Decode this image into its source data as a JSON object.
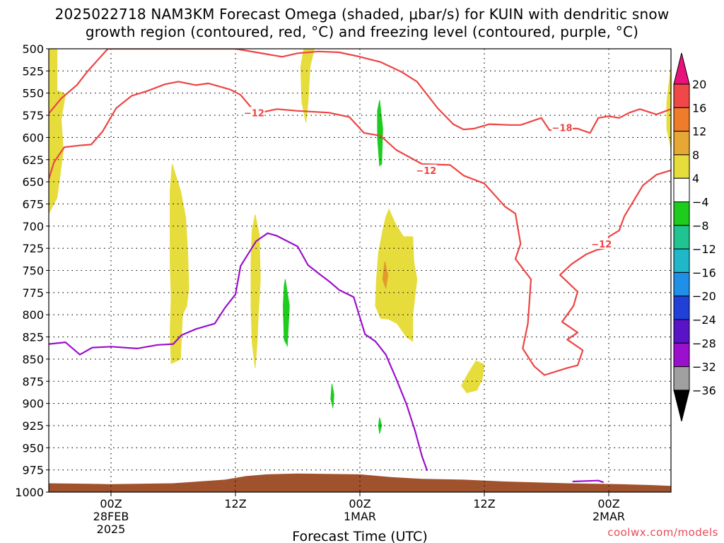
{
  "title_line1": "2025022718 NAM3KM Forecast Omega (shaded, μbar/s) for KUIN with dendritic snow",
  "title_line2": "growth region (contoured, red, °C) and freezing level (contoured, purple, °C)",
  "credit": "coolwx.com/models",
  "colors": {
    "dgz": "#ee4444",
    "freezing": "#9a10cc",
    "terrain": "#a0522d",
    "upward_green": "#1ecc1e",
    "downward_yellow": "#e6dc3c",
    "downward_orange": "#e39a2a"
  },
  "chart_data": {
    "type": "time-pressure cross-section",
    "xlabel": "Forecast Time (UTC)",
    "ylabel": "",
    "x_unit": "hours after 2025-02-27 18Z",
    "xlim": [
      0,
      60
    ],
    "ylim": [
      500,
      1000
    ],
    "y_inverted": true,
    "grid": true,
    "yticks": [
      "500",
      "525",
      "550",
      "575",
      "600",
      "625",
      "650",
      "675",
      "700",
      "725",
      "750",
      "775",
      "800",
      "825",
      "850",
      "875",
      "900",
      "925",
      "950",
      "975",
      "1000"
    ],
    "xticks": [
      {
        "t": 6,
        "lines": [
          "00Z",
          "28FEB",
          "2025"
        ]
      },
      {
        "t": 18,
        "lines": [
          "12Z"
        ]
      },
      {
        "t": 30,
        "lines": [
          "00Z",
          "1MAR"
        ]
      },
      {
        "t": 42,
        "lines": [
          "12Z"
        ]
      },
      {
        "t": 54,
        "lines": [
          "00Z",
          "2MAR"
        ]
      }
    ],
    "colorbar": {
      "labels": [
        "20",
        "16",
        "12",
        "8",
        "4",
        "-4",
        "-8",
        "-12",
        "-16",
        "-20",
        "-24",
        "-28",
        "-32",
        "-36"
      ],
      "colors": [
        "#e8127a",
        "#f04848",
        "#ee7c2a",
        "#e6a834",
        "#e6dc3c",
        "#ffffff",
        "#1ecc1e",
        "#20c490",
        "#20b8c8",
        "#1e90e8",
        "#2040d8",
        "#5a14c8",
        "#9a10cc",
        "#a0a0a0",
        "#000000"
      ]
    },
    "contours": [
      {
        "name": "-12",
        "kind": "dgz",
        "label": {
          "t": 19.8,
          "p": 572
        },
        "points": [
          [
            0,
            647
          ],
          [
            0.5,
            628
          ],
          [
            1.5,
            611
          ],
          [
            3,
            609
          ],
          [
            4.1,
            608
          ],
          [
            5.2,
            593
          ],
          [
            6.5,
            567
          ],
          [
            8,
            553
          ],
          [
            9.4,
            548
          ],
          [
            11.2,
            540
          ],
          [
            12.5,
            537
          ],
          [
            14.2,
            541
          ],
          [
            15.4,
            539
          ],
          [
            17.5,
            546
          ],
          [
            18.5,
            552
          ],
          [
            20,
            573
          ],
          [
            22,
            568
          ],
          [
            24,
            570
          ],
          [
            27,
            572
          ],
          [
            29,
            577
          ],
          [
            30.4,
            595
          ],
          [
            32,
            598
          ],
          [
            33.5,
            614
          ],
          [
            36,
            630
          ],
          [
            38.7,
            631
          ],
          [
            40,
            643
          ],
          [
            42,
            652
          ],
          [
            44,
            678
          ],
          [
            45,
            686
          ],
          [
            45.5,
            720
          ],
          [
            45,
            737
          ],
          [
            46.5,
            760
          ],
          [
            46.2,
            810
          ],
          [
            45.7,
            838
          ],
          [
            46.8,
            858
          ],
          [
            47.8,
            868
          ],
          [
            50,
            860
          ],
          [
            51,
            857
          ],
          [
            51.5,
            840
          ],
          [
            50,
            828
          ],
          [
            51,
            820
          ],
          [
            49.5,
            808
          ],
          [
            50.6,
            790
          ],
          [
            51,
            774
          ],
          [
            49.3,
            755
          ],
          [
            50.4,
            743
          ],
          [
            51.8,
            732
          ],
          [
            52.8,
            727
          ],
          [
            54,
            724
          ],
          [
            54,
            712
          ],
          [
            55,
            705
          ],
          [
            55.5,
            689
          ],
          [
            57.3,
            654
          ],
          [
            58.6,
            642
          ],
          [
            60,
            637
          ]
        ]
      },
      {
        "name": "-12",
        "kind": "dgz",
        "label": {
          "t": 53.3,
          "p": 720
        },
        "points": []
      },
      {
        "name": "-12",
        "kind": "dgz",
        "label": {
          "t": 36.4,
          "p": 637
        },
        "points": []
      },
      {
        "name": "-18",
        "kind": "dgz",
        "label": {
          "t": 49.5,
          "p": 589
        },
        "points": [
          [
            0,
            573
          ],
          [
            1.2,
            556
          ],
          [
            2.7,
            541
          ],
          [
            3.7,
            526
          ],
          [
            5,
            509
          ],
          [
            5.7,
            500
          ],
          [
            18,
            500
          ],
          [
            20,
            504
          ],
          [
            22.5,
            509
          ],
          [
            24,
            505
          ],
          [
            26,
            503
          ],
          [
            28,
            504
          ],
          [
            30,
            509
          ],
          [
            32,
            515
          ],
          [
            34,
            526
          ],
          [
            35.5,
            537
          ],
          [
            37.5,
            567
          ],
          [
            39,
            585
          ],
          [
            40,
            591
          ],
          [
            41,
            590
          ],
          [
            42.5,
            585
          ],
          [
            44.5,
            586
          ],
          [
            45.5,
            586
          ],
          [
            46.5,
            582
          ],
          [
            47.5,
            578
          ],
          [
            48.3,
            592
          ],
          [
            49.2,
            590
          ],
          [
            51,
            590
          ],
          [
            52.2,
            595
          ],
          [
            53,
            578
          ],
          [
            54,
            576
          ],
          [
            55,
            578
          ],
          [
            56,
            572
          ],
          [
            57,
            568
          ],
          [
            58.6,
            574
          ],
          [
            60,
            568
          ]
        ]
      },
      {
        "name": "freezing",
        "kind": "freezing",
        "label": null,
        "points": [
          [
            0,
            833
          ],
          [
            1.6,
            831
          ],
          [
            3,
            845
          ],
          [
            4.2,
            837
          ],
          [
            6,
            836
          ],
          [
            8.5,
            838
          ],
          [
            10.5,
            834
          ],
          [
            12,
            833
          ],
          [
            12.8,
            823
          ],
          [
            14.2,
            816
          ],
          [
            16,
            810
          ],
          [
            17,
            792
          ],
          [
            18,
            777
          ],
          [
            18.5,
            745
          ],
          [
            20,
            717
          ],
          [
            21.1,
            708
          ],
          [
            22,
            711
          ],
          [
            24,
            723
          ],
          [
            25,
            744
          ],
          [
            26.2,
            755
          ],
          [
            27,
            762
          ],
          [
            28,
            772
          ],
          [
            29.4,
            780
          ],
          [
            30.5,
            822
          ],
          [
            31.5,
            830
          ],
          [
            32.5,
            845
          ],
          [
            33.5,
            872
          ],
          [
            34.5,
            901
          ],
          [
            35.3,
            930
          ],
          [
            36,
            960
          ],
          [
            36.5,
            976
          ]
        ]
      },
      {
        "name": "freezing",
        "kind": "freezing",
        "label": null,
        "points": [
          [
            50.5,
            988
          ],
          [
            53,
            987
          ],
          [
            53.5,
            989
          ]
        ]
      }
    ],
    "shaded": [
      {
        "value": 4,
        "color": "#e6dc3c",
        "points": [
          [
            0,
            500
          ],
          [
            0.8,
            500
          ],
          [
            0.8,
            547
          ],
          [
            1.6,
            551
          ],
          [
            1.2,
            580
          ],
          [
            1.4,
            615
          ],
          [
            1,
            650
          ],
          [
            0.8,
            668
          ],
          [
            0,
            686
          ]
        ]
      },
      {
        "value": 4,
        "color": "#e6dc3c",
        "points": [
          [
            24.6,
            500
          ],
          [
            25.6,
            500
          ],
          [
            25.2,
            520
          ],
          [
            25,
            560
          ],
          [
            24.8,
            583
          ],
          [
            24.4,
            560
          ],
          [
            24.3,
            520
          ]
        ]
      },
      {
        "value": 4,
        "color": "#e6dc3c",
        "points": [
          [
            59.6,
            560
          ],
          [
            60,
            520
          ],
          [
            60,
            612
          ],
          [
            59.6,
            590
          ]
        ]
      },
      {
        "value": 4,
        "color": "#e6dc3c",
        "points": [
          [
            11.9,
            630
          ],
          [
            12.7,
            660
          ],
          [
            13.2,
            690
          ],
          [
            13.4,
            730
          ],
          [
            13.5,
            770
          ],
          [
            13.3,
            790
          ],
          [
            12.9,
            800
          ],
          [
            12.8,
            823
          ],
          [
            12.7,
            850
          ],
          [
            11.8,
            855
          ],
          [
            11.7,
            820
          ],
          [
            11.8,
            780
          ],
          [
            11.7,
            740
          ],
          [
            11.7,
            700
          ],
          [
            11.7,
            660
          ]
        ]
      },
      {
        "value": 4,
        "color": "#e6dc3c",
        "points": [
          [
            19.9,
            687
          ],
          [
            20.3,
            710
          ],
          [
            20.4,
            760
          ],
          [
            20.2,
            800
          ],
          [
            20.1,
            830
          ],
          [
            19.9,
            860
          ],
          [
            19.6,
            830
          ],
          [
            19.5,
            790
          ],
          [
            19.5,
            740
          ],
          [
            19.6,
            705
          ]
        ]
      },
      {
        "value": 4,
        "color": "#e6dc3c",
        "points": [
          [
            32.8,
            681
          ],
          [
            33.4,
            697
          ],
          [
            34.2,
            712
          ],
          [
            35.1,
            712
          ],
          [
            35.2,
            740
          ],
          [
            35.5,
            760
          ],
          [
            35.1,
            800
          ],
          [
            35.1,
            830
          ],
          [
            34.5,
            825
          ],
          [
            33.6,
            810
          ],
          [
            32.8,
            805
          ],
          [
            32,
            804
          ],
          [
            31.5,
            790
          ],
          [
            31.6,
            760
          ],
          [
            31.8,
            730
          ],
          [
            32.2,
            705
          ],
          [
            32.5,
            690
          ]
        ]
      },
      {
        "value": 4,
        "color": "#e6dc3c",
        "points": [
          [
            41.2,
            852
          ],
          [
            42,
            856
          ],
          [
            41.8,
            872
          ],
          [
            41.3,
            885
          ],
          [
            40.3,
            888
          ],
          [
            39.8,
            880
          ],
          [
            40.5,
            865
          ]
        ]
      },
      {
        "value": 8,
        "color": "#e39a2a",
        "points": [
          [
            32.4,
            740
          ],
          [
            32.7,
            755
          ],
          [
            32.5,
            770
          ],
          [
            32.2,
            760
          ]
        ]
      },
      {
        "value": -4,
        "color": "#1ecc1e",
        "points": [
          [
            31.9,
            558
          ],
          [
            32.2,
            590
          ],
          [
            32.1,
            630
          ],
          [
            31.9,
            632
          ],
          [
            31.7,
            600
          ],
          [
            31.7,
            570
          ]
        ]
      },
      {
        "value": -4,
        "color": "#1ecc1e",
        "points": [
          [
            22.8,
            760
          ],
          [
            23.2,
            790
          ],
          [
            23,
            835
          ],
          [
            22.7,
            828
          ],
          [
            22.6,
            790
          ],
          [
            22.7,
            768
          ]
        ]
      },
      {
        "value": -4,
        "color": "#1ecc1e",
        "points": [
          [
            27.3,
            878
          ],
          [
            27.5,
            890
          ],
          [
            27.4,
            905
          ],
          [
            27.2,
            895
          ]
        ]
      },
      {
        "value": -4,
        "color": "#1ecc1e",
        "points": [
          [
            31.9,
            916
          ],
          [
            32.1,
            925
          ],
          [
            31.9,
            934
          ],
          [
            31.8,
            925
          ]
        ]
      }
    ],
    "terrain": {
      "color": "#a0522d",
      "points": [
        [
          0,
          990
        ],
        [
          6,
          991
        ],
        [
          12,
          990
        ],
        [
          17,
          986
        ],
        [
          19,
          982
        ],
        [
          21,
          980
        ],
        [
          24,
          979
        ],
        [
          30,
          980
        ],
        [
          33,
          983
        ],
        [
          36,
          985
        ],
        [
          40,
          986
        ],
        [
          44,
          988
        ],
        [
          50,
          990
        ],
        [
          55,
          991
        ],
        [
          58,
          992
        ],
        [
          60,
          993
        ]
      ]
    }
  }
}
